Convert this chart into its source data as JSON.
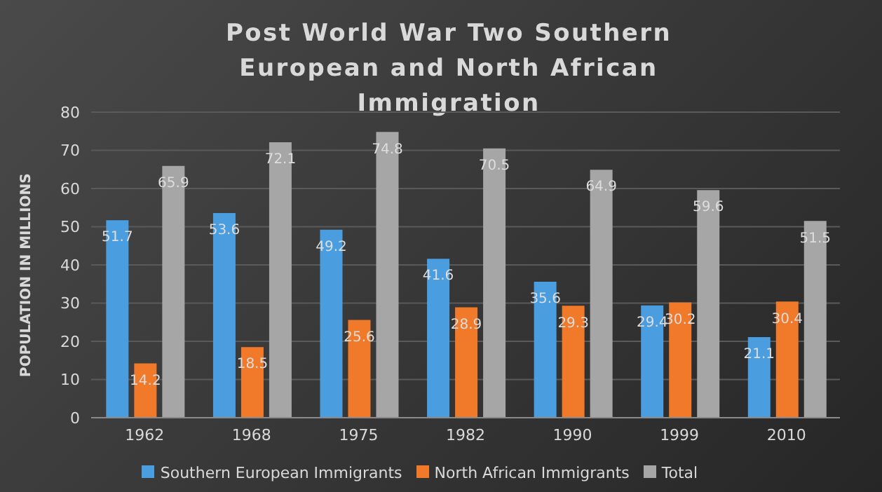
{
  "chart_data": {
    "type": "bar",
    "title": "Post World War Two Southern European and North African Immigration",
    "ylabel": "POPULATION IN  MILLIONS",
    "categories": [
      "1962",
      "1968",
      "1975",
      "1982",
      "1990",
      "1999",
      "2010"
    ],
    "series": [
      {
        "name": "Southern European Immigrants",
        "color": "#4a9ee0",
        "values": [
          51.7,
          53.6,
          49.2,
          41.6,
          35.6,
          29.4,
          21.1
        ]
      },
      {
        "name": "North African Immigrants",
        "color": "#f07a2a",
        "values": [
          14.2,
          18.5,
          25.6,
          28.9,
          29.3,
          30.2,
          30.4
        ]
      },
      {
        "name": "Total",
        "color": "#a6a6a6",
        "values": [
          65.9,
          72.1,
          74.8,
          70.5,
          64.9,
          59.6,
          51.5
        ]
      }
    ],
    "ylim": [
      0,
      80
    ],
    "yticks": [
      0,
      10,
      20,
      30,
      40,
      50,
      60,
      70,
      80
    ],
    "grid": "y",
    "legend": "bottom",
    "data_labels": true
  }
}
